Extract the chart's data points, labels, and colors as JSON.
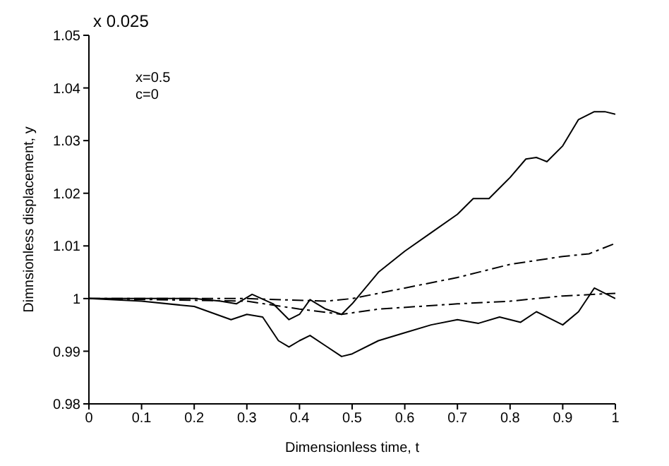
{
  "chart_data": {
    "type": "line",
    "xlabel": "Dimensionless time, t",
    "ylabel": "Dimnsionless displacement, y",
    "annotations": [
      "x 0.025",
      "x=0.5",
      "c=0"
    ],
    "xlim": [
      0,
      1
    ],
    "xticks": [
      0,
      0.1,
      0.2,
      0.3,
      0.4,
      0.5,
      0.6,
      0.7,
      0.8,
      0.9,
      1
    ],
    "ylim": [
      0.98,
      1.05
    ],
    "yticks": [
      0.98,
      0.99,
      1,
      1.01,
      1.02,
      1.03,
      1.04,
      1.05
    ],
    "grid": false,
    "legend": false,
    "marker": "none",
    "series": [
      {
        "color": "#000000",
        "line_style": "solid",
        "x": [
          0,
          0.2,
          0.25,
          0.28,
          0.31,
          0.35,
          0.38,
          0.4,
          0.42,
          0.45,
          0.48,
          0.5,
          0.55,
          0.6,
          0.65,
          0.7,
          0.73,
          0.76,
          0.8,
          0.83,
          0.85,
          0.87,
          0.9,
          0.93,
          0.96,
          0.98,
          1
        ],
        "values": [
          1,
          1,
          0.9995,
          0.999,
          1.0008,
          0.999,
          0.996,
          0.997,
          0.9998,
          0.998,
          0.997,
          0.999,
          1.005,
          1.009,
          1.0125,
          1.016,
          1.019,
          1.019,
          1.023,
          1.0265,
          1.0268,
          1.026,
          1.029,
          1.034,
          1.0355,
          1.0355,
          1.035
        ]
      },
      {
        "color": "#000000",
        "line_style": "solid",
        "x": [
          0,
          0.1,
          0.2,
          0.27,
          0.3,
          0.33,
          0.36,
          0.38,
          0.4,
          0.42,
          0.45,
          0.48,
          0.5,
          0.55,
          0.6,
          0.65,
          0.7,
          0.74,
          0.78,
          0.82,
          0.85,
          0.88,
          0.9,
          0.93,
          0.96,
          0.98,
          1
        ],
        "values": [
          1,
          0.9995,
          0.9985,
          0.996,
          0.997,
          0.9965,
          0.992,
          0.9908,
          0.992,
          0.993,
          0.991,
          0.989,
          0.9895,
          0.992,
          0.9935,
          0.995,
          0.996,
          0.9953,
          0.9965,
          0.9955,
          0.9975,
          0.996,
          0.995,
          0.9975,
          1.002,
          1.001,
          1
        ]
      },
      {
        "color": "#000000",
        "line_style": "dashed",
        "x": [
          0,
          0.3,
          0.45,
          0.5,
          0.6,
          0.7,
          0.8,
          0.9,
          0.95,
          1
        ],
        "values": [
          1,
          1,
          0.9995,
          1,
          1.002,
          1.004,
          1.0065,
          1.008,
          1.0085,
          1.0105
        ]
      },
      {
        "color": "#000000",
        "line_style": "dashed",
        "x": [
          0,
          0.3,
          0.4,
          0.48,
          0.55,
          0.7,
          0.8,
          0.9,
          1
        ],
        "values": [
          1,
          0.9995,
          0.998,
          0.997,
          0.998,
          0.999,
          0.9995,
          1.0005,
          1.001
        ]
      }
    ]
  }
}
